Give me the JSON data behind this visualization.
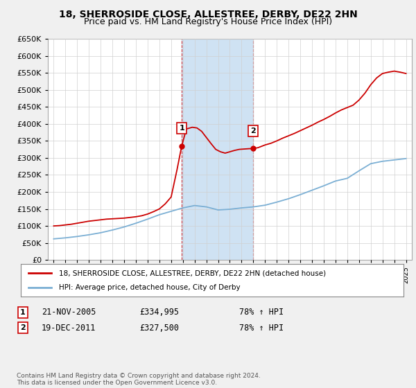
{
  "title": "18, SHERROSIDE CLOSE, ALLESTREE, DERBY, DE22 2HN",
  "subtitle": "Price paid vs. HM Land Registry's House Price Index (HPI)",
  "ylim": [
    0,
    650000
  ],
  "yticks": [
    0,
    50000,
    100000,
    150000,
    200000,
    250000,
    300000,
    350000,
    400000,
    450000,
    500000,
    550000,
    600000,
    650000
  ],
  "xlim_start": 1994.5,
  "xlim_end": 2025.5,
  "xtick_years": [
    1995,
    1996,
    1997,
    1998,
    1999,
    2000,
    2001,
    2002,
    2003,
    2004,
    2005,
    2006,
    2007,
    2008,
    2009,
    2010,
    2011,
    2012,
    2013,
    2014,
    2015,
    2016,
    2017,
    2018,
    2019,
    2020,
    2021,
    2022,
    2023,
    2024,
    2025
  ],
  "legend_entries": [
    "18, SHERROSIDE CLOSE, ALLESTREE, DERBY, DE22 2HN (detached house)",
    "HPI: Average price, detached house, City of Derby"
  ],
  "sale1_x": 2005.9,
  "sale1_y": 334995,
  "sale2_x": 2011.97,
  "sale2_y": 327500,
  "shaded_x_start": 2005.9,
  "shaded_x_end": 2011.97,
  "red_color": "#cc0000",
  "blue_color": "#7bafd4",
  "shade_color": "#cfe2f3",
  "plot_bg_color": "#ffffff",
  "fig_bg_color": "#f0f0f0",
  "grid_color": "#d0d0d0",
  "footer_text": "Contains HM Land Registry data © Crown copyright and database right 2024.\nThis data is licensed under the Open Government Licence v3.0.",
  "sale1_date": "21-NOV-2005",
  "sale1_price": "£334,995",
  "sale1_hpi": "78% ↑ HPI",
  "sale2_date": "19-DEC-2011",
  "sale2_price": "£327,500",
  "sale2_hpi": "78% ↑ HPI",
  "years_red": [
    1995,
    1995.5,
    1996,
    1996.5,
    1997,
    1997.5,
    1998,
    1998.5,
    1999,
    1999.5,
    2000,
    2000.5,
    2001,
    2001.5,
    2002,
    2002.5,
    2003,
    2003.5,
    2004,
    2004.5,
    2005,
    2005.5,
    2005.9,
    2006.3,
    2006.8,
    2007.2,
    2007.6,
    2008.0,
    2008.4,
    2008.8,
    2009.2,
    2009.6,
    2010.0,
    2010.4,
    2010.8,
    2011.2,
    2011.6,
    2011.97,
    2012.4,
    2013.0,
    2013.5,
    2014.0,
    2014.5,
    2015.0,
    2015.5,
    2016.0,
    2016.5,
    2017.0,
    2017.5,
    2018.0,
    2018.5,
    2019.0,
    2019.5,
    2020.0,
    2020.5,
    2021.0,
    2021.5,
    2022.0,
    2022.5,
    2023.0,
    2023.5,
    2024.0,
    2024.5,
    2025.0
  ],
  "vals_red": [
    100000,
    101000,
    103000,
    105000,
    108000,
    111000,
    114000,
    116000,
    118000,
    120000,
    121000,
    122000,
    123000,
    125000,
    127000,
    130000,
    135000,
    142000,
    150000,
    165000,
    185000,
    265000,
    334995,
    385000,
    390000,
    388000,
    378000,
    360000,
    342000,
    325000,
    318000,
    314000,
    318000,
    322000,
    325000,
    326000,
    327000,
    327500,
    330000,
    338000,
    343000,
    350000,
    358000,
    365000,
    372000,
    380000,
    388000,
    396000,
    405000,
    413000,
    422000,
    432000,
    441000,
    448000,
    455000,
    470000,
    490000,
    515000,
    535000,
    548000,
    552000,
    555000,
    552000,
    548000
  ],
  "years_blue": [
    1995,
    1996,
    1997,
    1998,
    1999,
    2000,
    2001,
    2002,
    2003,
    2004,
    2005,
    2006,
    2007,
    2008,
    2009,
    2010,
    2011,
    2012,
    2013,
    2014,
    2015,
    2016,
    2017,
    2018,
    2019,
    2020,
    2021,
    2022,
    2023,
    2024,
    2025
  ],
  "vals_blue": [
    62000,
    65000,
    69000,
    74000,
    80000,
    88000,
    97000,
    108000,
    120000,
    133000,
    143000,
    153000,
    160000,
    156000,
    147000,
    149000,
    153000,
    156000,
    161000,
    170000,
    180000,
    192000,
    205000,
    218000,
    232000,
    240000,
    262000,
    283000,
    290000,
    294000,
    298000
  ]
}
